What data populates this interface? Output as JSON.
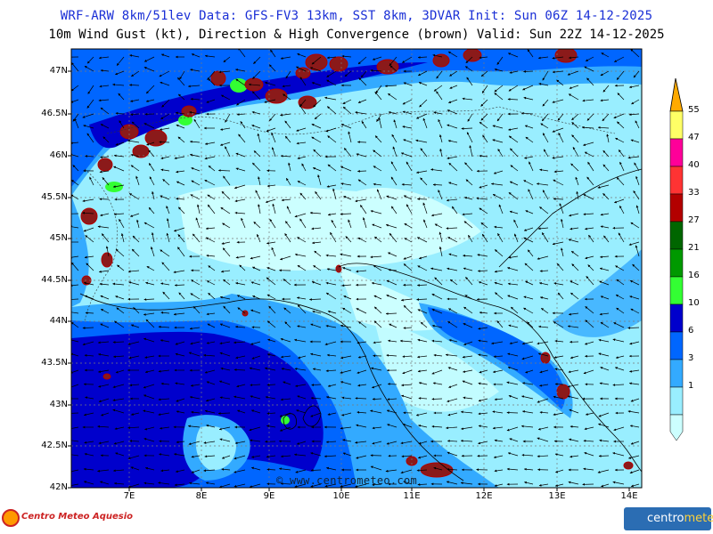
{
  "title_line1": "WRF-ARW 8km/51lev  Data: GFS-FV3 13km, SST 8km, 3DVAR  Init: Sun 06Z 14-12-2025",
  "title_line2": "10m Wind Gust (kt), Direction & High Convergence (brown)  Valid: Sun 22Z 14-12-2025",
  "lat_labels": [
    "47N",
    "46.5N",
    "46N",
    "45.5N",
    "45N",
    "44.5N",
    "44N",
    "43.5N",
    "43N",
    "42.5N",
    "42N"
  ],
  "lon_labels": [
    "7E",
    "8E",
    "9E",
    "10E",
    "11E",
    "12E",
    "13E",
    "14E"
  ],
  "colorbar": {
    "labels": [
      "55",
      "47",
      "40",
      "33",
      "27",
      "21",
      "16",
      "10",
      "6",
      "3",
      "1"
    ],
    "colors": [
      "#ffff66",
      "#ff0099",
      "#ff3333",
      "#b30000",
      "#006600",
      "#009900",
      "#33ff33",
      "#0000cc",
      "#0066ff",
      "#33aaff",
      "#99eeff",
      "#ccffff"
    ],
    "arrow_color": "#ffaa00"
  },
  "watermark": "© www.centrometeo.com",
  "logo_left": "Centro Meteo Aquesio",
  "logo_right": {
    "part1": "centro",
    "part2": "meteo"
  }
}
